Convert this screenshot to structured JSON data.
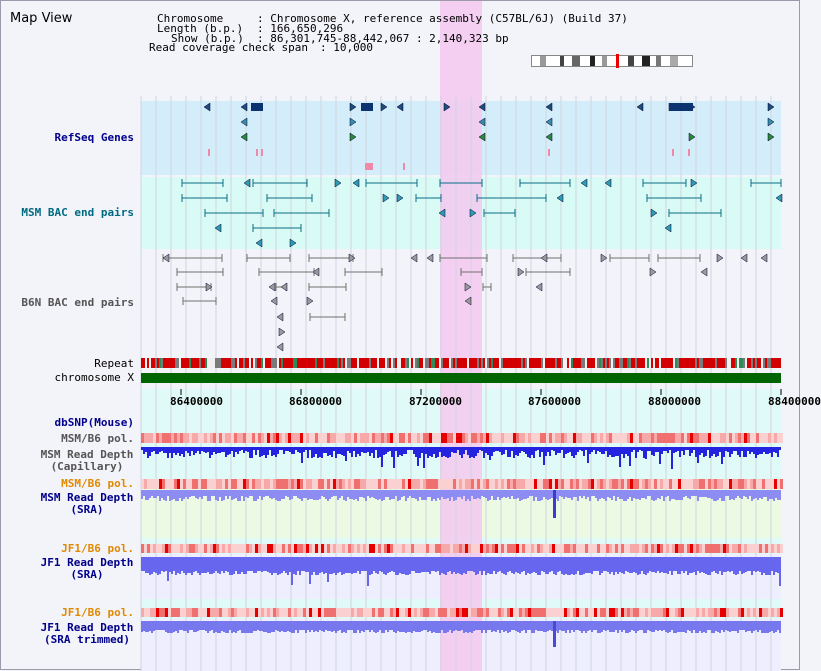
{
  "page_title": "Map View",
  "info": {
    "chromosome_label": "Chromosome",
    "chromosome_value": ": Chromosome X, reference assembly (C57BL/6J) (Build 37)",
    "length_label": "Length (b.p.)",
    "length_value": ": 166,650,296",
    "show_label": "Show (b.p.)",
    "show_value": ": 86,301,745-88,442,067 : 2,140,323 bp",
    "coverage_label": "Read coverage check span",
    "coverage_value": ": 10,000"
  },
  "tracks": {
    "refseq": "RefSeq Genes",
    "msm_bac": "MSM BAC end pairs",
    "b6n_bac": "B6N BAC end pairs",
    "repeat": "Repeat",
    "chromosome": "chromosome X",
    "dbsnp": "dbSNP(Mouse)",
    "msm_pol_1": "MSM/B6 pol.",
    "msm_depth_cap_1": "MSM Read Depth",
    "msm_depth_cap_2": "(Capillary)",
    "msm_pol_2": "MSM/B6 pol.",
    "msm_depth_sra_1": "MSM Read Depth",
    "msm_depth_sra_2": "(SRA)",
    "jf1_pol_1": "JF1/B6 pol.",
    "jf1_depth_sra_1": "JF1 Read Depth",
    "jf1_depth_sra_2": "(SRA)",
    "jf1_pol_2": "JF1/B6 pol.",
    "jf1_depth_trim_1": "JF1 Read Depth",
    "jf1_depth_trim_2": "(SRA trimmed)"
  },
  "axis": {
    "ticks": [
      "86400000",
      "86800000",
      "87200000",
      "87600000",
      "88000000",
      "88400000"
    ]
  },
  "colors": {
    "label_blue": "#00008b",
    "label_teal": "#006b80",
    "label_gray": "#555555",
    "label_orange": "#e08a00",
    "highlight": "#f3c8ee",
    "refseq_bg": "#d3eefa",
    "msm_bg": "#d8fbf6",
    "depth_blue": "#4a4ae6",
    "chromosome_green": "#006400"
  }
}
